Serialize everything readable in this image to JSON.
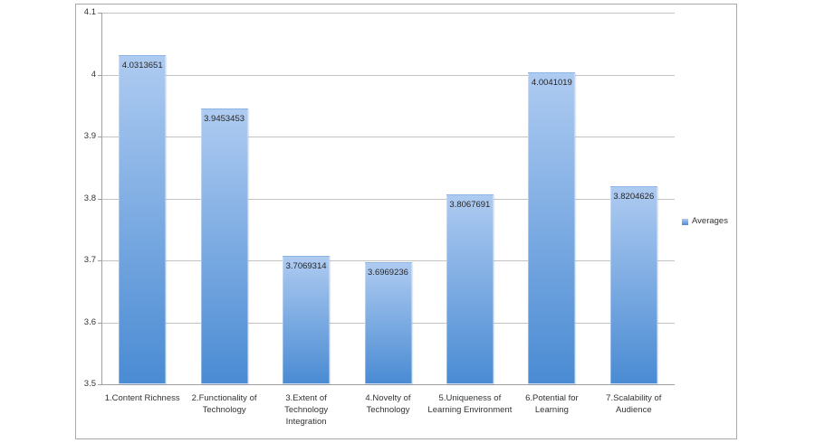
{
  "chart_data": {
    "type": "bar",
    "title": "",
    "categories": [
      "1.Content Richness",
      "2.Functionality of\nTechnology",
      "3.Extent of\nTechnology\nIntegration",
      "4.Novelty of\nTechnology",
      "5.Uniqueness of\nLearning Environment",
      "6.Potential for\nLearning",
      "7.Scalability of\nAudience"
    ],
    "series": [
      {
        "name": "Averages",
        "values": [
          4.0313651,
          3.9453453,
          3.7069314,
          3.6969236,
          3.8067691,
          4.0041019,
          3.8204626
        ],
        "value_labels": [
          "4.0313651",
          "3.9453453",
          "3.7069314",
          "3.6969236",
          "3.8067691",
          "4.0041019",
          "3.8204626"
        ]
      }
    ],
    "ylim": [
      3.5,
      4.1
    ],
    "ytick_step": 0.1,
    "ytick_labels_top_to_bottom": [
      "4.1",
      "4",
      "3.9",
      "3.8",
      "3.7",
      "3.6",
      "3.5"
    ],
    "grid": true,
    "legend_position": "right",
    "colors": {
      "bar_gradient_top": "#aecbf1",
      "bar_gradient_bottom": "#4a8bd3",
      "gridline": "#c3c3c3",
      "axis": "#a0a0a0",
      "text": "#333333",
      "data_label_text": "#262626",
      "frame_border": "#a9a9a9",
      "background": "#ffffff"
    }
  }
}
